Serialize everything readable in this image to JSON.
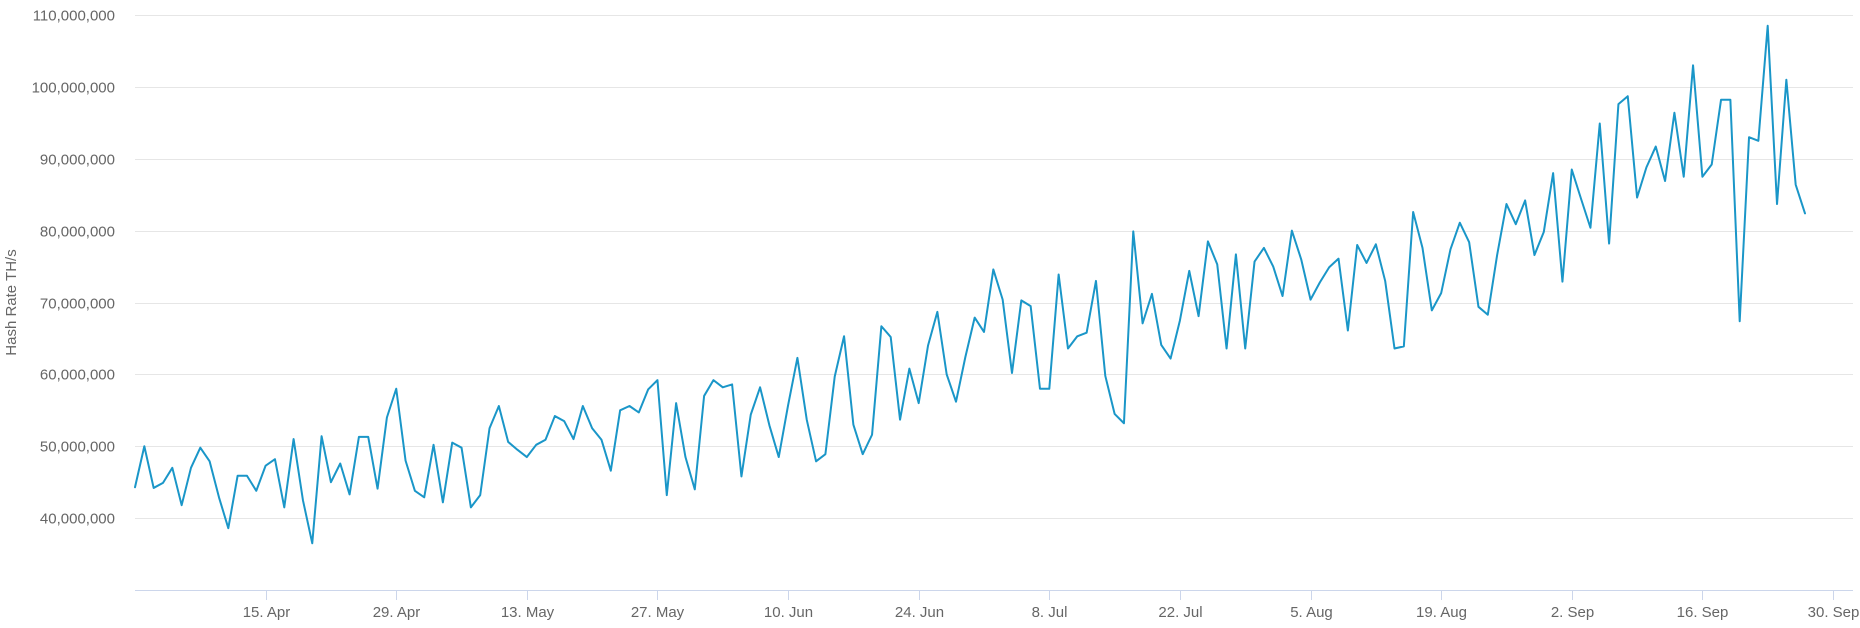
{
  "chart_data": {
    "type": "line",
    "title": "",
    "ylabel": "Hash Rate TH/s",
    "xlabel": "",
    "x_start": "2018-04-01",
    "x_step_days": 1,
    "x_end": "2018-09-30",
    "ylim": [
      30000000,
      110000000
    ],
    "y_ticks": [
      40000000,
      50000000,
      60000000,
      70000000,
      80000000,
      90000000,
      100000000,
      110000000
    ],
    "y_tick_labels": [
      "40,000,000",
      "50,000,000",
      "60,000,000",
      "70,000,000",
      "80,000,000",
      "90,000,000",
      "100,000,000",
      "110,000,000"
    ],
    "x_ticks": [
      "2018-04-15",
      "2018-04-29",
      "2018-05-13",
      "2018-05-27",
      "2018-06-10",
      "2018-06-24",
      "2018-07-08",
      "2018-07-22",
      "2018-08-05",
      "2018-08-19",
      "2018-09-02",
      "2018-09-16",
      "2018-09-30"
    ],
    "x_tick_labels": [
      "15. Apr",
      "29. Apr",
      "13. May",
      "27. May",
      "10. Jun",
      "24. Jun",
      "8. Jul",
      "22. Jul",
      "5. Aug",
      "19. Aug",
      "2. Sep",
      "16. Sep",
      "30. Sep"
    ],
    "grid": true,
    "legend": "none",
    "colors": {
      "line": "#1a96c8",
      "grid": "#e6e6e6",
      "axis": "#ccd6eb",
      "text": "#666666"
    },
    "series": [
      {
        "values": [
          44300000,
          50000000,
          44200000,
          44900000,
          47000000,
          41800000,
          47000000,
          49800000,
          47900000,
          42900000,
          38600000,
          45900000,
          45900000,
          43800000,
          47300000,
          48200000,
          41500000,
          51000000,
          42500000,
          36500000,
          51400000,
          45000000,
          47600000,
          43300000,
          51300000,
          51300000,
          44100000,
          54000000,
          58000000,
          48000000,
          43800000,
          42900000,
          50200000,
          42200000,
          50500000,
          49800000,
          41500000,
          43200000,
          52500000,
          55600000,
          50600000,
          49500000,
          48500000,
          50200000,
          50900000,
          54200000,
          53500000,
          51000000,
          55600000,
          52500000,
          50900000,
          46600000,
          55000000,
          55600000,
          54700000,
          57900000,
          59200000,
          43200000,
          56000000,
          48500000,
          44000000,
          57000000,
          59200000,
          58200000,
          58600000,
          45800000,
          54400000,
          58200000,
          52900000,
          48500000,
          55700000,
          62300000,
          53700000,
          47900000,
          48900000,
          59700000,
          65300000,
          53000000,
          48900000,
          51600000,
          66700000,
          65200000,
          53700000,
          60800000,
          56000000,
          64000000,
          68700000,
          60000000,
          56200000,
          62400000,
          67900000,
          65900000,
          74600000,
          70400000,
          60200000,
          70300000,
          69500000,
          58000000,
          58000000,
          73900000,
          63600000,
          65300000,
          65800000,
          73000000,
          59800000,
          54500000,
          53200000,
          79900000,
          67100000,
          71200000,
          64100000,
          62200000,
          67500000,
          74400000,
          68100000,
          78500000,
          75300000,
          63600000,
          76700000,
          63600000,
          75700000,
          77600000,
          75000000,
          70900000,
          80000000,
          76000000,
          70400000,
          72800000,
          74900000,
          76100000,
          66100000,
          78000000,
          75500000,
          78100000,
          73000000,
          63600000,
          63900000,
          82600000,
          77600000,
          68900000,
          71300000,
          77400000,
          81100000,
          78400000,
          69400000,
          68300000,
          76600000,
          83700000,
          80900000,
          84200000,
          76600000,
          79800000,
          88000000,
          72900000,
          88500000,
          84400000,
          80400000,
          94900000,
          78200000,
          97600000,
          98700000,
          84600000,
          88800000,
          91700000,
          86900000,
          96400000,
          87500000,
          103000000,
          87500000,
          89200000,
          98200000,
          98200000,
          67400000,
          93000000,
          92500000,
          108500000,
          83700000,
          101000000,
          86400000,
          82400000
        ]
      }
    ]
  }
}
